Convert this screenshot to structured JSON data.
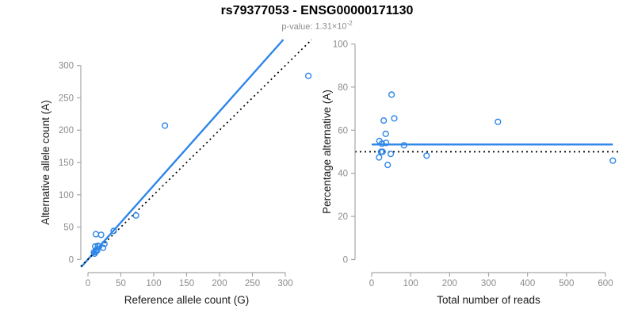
{
  "header": {
    "title": "rs79377053 - ENSG00000171130",
    "subtitle": {
      "label": "p-value:",
      "mantissa": "1.31",
      "times": "×",
      "base": "10",
      "exponent": "-2"
    }
  },
  "colors": {
    "background": "#FFFFFF",
    "point_blue": "#2E86E8",
    "line_blue": "#2E86E8",
    "dotted_line": "#000000",
    "axis_line": "#A6A6A6",
    "tick_label": "#8C8C8C",
    "axis_title": "#1A1A1A",
    "title_color": "#000000",
    "subtitle_gray": "#8C8C8C"
  },
  "chart_data": [
    {
      "id": "allele-counts",
      "type": "scatter",
      "title": "",
      "xlabel": "Reference allele count (G)",
      "ylabel": "Alternative allele count (A)",
      "xticks": [
        0,
        50,
        100,
        150,
        200,
        250,
        300
      ],
      "yticks": [
        0,
        50,
        100,
        150,
        200,
        250,
        300
      ],
      "xlim": [
        -11,
        342
      ],
      "ylim": [
        -12,
        340
      ],
      "grid": false,
      "legend": null,
      "marker": "open-circle",
      "points": [
        [
          12,
          39
        ],
        [
          20,
          38
        ],
        [
          11,
          20
        ],
        [
          15,
          21
        ],
        [
          9,
          11
        ],
        [
          12,
          14
        ],
        [
          17,
          20
        ],
        [
          39,
          44
        ],
        [
          12,
          12
        ],
        [
          14,
          14
        ],
        [
          25,
          24
        ],
        [
          73,
          68
        ],
        [
          10,
          9
        ],
        [
          23,
          18
        ],
        [
          117,
          207
        ],
        [
          335,
          284
        ]
      ],
      "lines": [
        {
          "name": "regression-line",
          "style": "solid",
          "color_key": "line_blue",
          "slope": 1.145,
          "intercept": 0
        },
        {
          "name": "identity-line",
          "style": "dotted",
          "color_key": "dotted_line",
          "slope": 1,
          "intercept": 0
        }
      ]
    },
    {
      "id": "percentage-vs-reads",
      "type": "scatter",
      "title": "",
      "xlabel": "Total number of reads",
      "ylabel": "Percentage alternative (A)",
      "xticks": [
        0,
        100,
        200,
        300,
        400,
        500,
        600
      ],
      "yticks": [
        0,
        20,
        40,
        60,
        80,
        100
      ],
      "xlim": [
        -43,
        633
      ],
      "ylim": [
        -3.5,
        102
      ],
      "grid": false,
      "legend": null,
      "marker": "open-circle",
      "points": [
        [
          51,
          76.5
        ],
        [
          58,
          65.5
        ],
        [
          31,
          64.5
        ],
        [
          36,
          58.3
        ],
        [
          20,
          55.0
        ],
        [
          26,
          53.8
        ],
        [
          37,
          54.1
        ],
        [
          83,
          53.0
        ],
        [
          24,
          50.0
        ],
        [
          28,
          50.0
        ],
        [
          49,
          49.0
        ],
        [
          141,
          48.2
        ],
        [
          19,
          47.4
        ],
        [
          41,
          43.9
        ],
        [
          324,
          63.9
        ],
        [
          619,
          45.9
        ]
      ],
      "lines": [
        {
          "name": "mean-percentage-line",
          "style": "solid",
          "color_key": "line_blue",
          "y": 53.4,
          "x_range": [
            0,
            619
          ]
        },
        {
          "name": "expected-50-line",
          "style": "dotted",
          "color_key": "dotted_line",
          "y": 50
        }
      ]
    }
  ]
}
